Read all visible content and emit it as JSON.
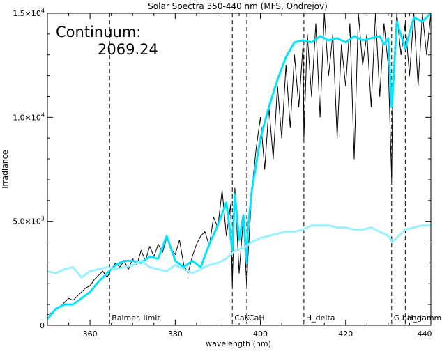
{
  "chart_data": {
    "type": "line",
    "title": "Solar Spectra 350-440 nm (MFS, Ondrejov)",
    "xlabel": "wavelength (nm)",
    "ylabel": "irradiance",
    "xlim": [
      350,
      440
    ],
    "ylim": [
      0,
      15000
    ],
    "x_ticks": [
      360,
      380,
      400,
      420,
      440
    ],
    "y_ticks": [
      {
        "value": 0,
        "base": "0",
        "exp": ""
      },
      {
        "value": 5000,
        "base": "5.0×10",
        "exp": "3"
      },
      {
        "value": 10000,
        "base": "1.0×10",
        "exp": "4"
      },
      {
        "value": 15000,
        "base": "1.5×10",
        "exp": "4"
      }
    ],
    "grid": false,
    "annotation": {
      "label": "Continuum:",
      "value": "2069.24"
    },
    "markers": [
      {
        "x": 364.6,
        "label": "Balmer. limit"
      },
      {
        "x": 393.4,
        "label": "CaK"
      },
      {
        "x": 396.8,
        "label": "CaH"
      },
      {
        "x": 410.2,
        "label": "H_delta"
      },
      {
        "x": 430.8,
        "label": "G band"
      },
      {
        "x": 434.0,
        "label": "H_gamma"
      }
    ],
    "series": [
      {
        "color": "#000000",
        "x": [
          350,
          351,
          352,
          353,
          354,
          355,
          356,
          357,
          358,
          359,
          360,
          361,
          362,
          363,
          364,
          365,
          366,
          367,
          368,
          369,
          370,
          371,
          372,
          373,
          374,
          375,
          376,
          377,
          378,
          379,
          380,
          381,
          382,
          383,
          384,
          385,
          386,
          387,
          388,
          389,
          390,
          391,
          392,
          393,
          393.4,
          394,
          395,
          396,
          396.8,
          397,
          398,
          399,
          400,
          401,
          402,
          403,
          404,
          405,
          406,
          407,
          408,
          409,
          410,
          410.2,
          411,
          412,
          413,
          414,
          415,
          416,
          417,
          418,
          419,
          420,
          421,
          422,
          423,
          424,
          425,
          426,
          427,
          428,
          429,
          430,
          430.8,
          431,
          432,
          433,
          434,
          435,
          436,
          437,
          438,
          439,
          440
        ],
        "y": [
          500,
          600,
          800,
          900,
          1100,
          1300,
          1200,
          1400,
          1600,
          1800,
          1900,
          2200,
          2400,
          2600,
          2300,
          2700,
          3000,
          2800,
          3100,
          2700,
          3200,
          2900,
          3600,
          3100,
          3800,
          3300,
          3900,
          3500,
          4200,
          3700,
          3400,
          4100,
          2900,
          2500,
          3300,
          3900,
          4300,
          4500,
          3800,
          5200,
          4700,
          6500,
          4300,
          5800,
          1900,
          6600,
          2500,
          5200,
          1800,
          3000,
          6500,
          8500,
          10000,
          7500,
          10500,
          8000,
          11500,
          9000,
          12500,
          9500,
          13000,
          10500,
          13500,
          9000,
          14000,
          11000,
          14500,
          10000,
          15000,
          12000,
          14000,
          9000,
          13500,
          11500,
          14500,
          8000,
          15000,
          12500,
          14000,
          10500,
          15000,
          11000,
          14500,
          12500,
          7000,
          10500,
          15000,
          13000,
          14500,
          12000,
          15000,
          11500,
          15000,
          13000,
          15000
        ]
      },
      {
        "color": "#00e5ff",
        "x": [
          350,
          352,
          354,
          356,
          358,
          360,
          362,
          364,
          366,
          368,
          370,
          372,
          374,
          376,
          378,
          380,
          382,
          384,
          386,
          388,
          390,
          392,
          393.4,
          394,
          395,
          396,
          396.8,
          397,
          398,
          400,
          402,
          404,
          406,
          408,
          410,
          412,
          414,
          416,
          418,
          420,
          422,
          424,
          426,
          428,
          429,
          430,
          430.8,
          431,
          432,
          434,
          436,
          438,
          440
        ],
        "y": [
          300,
          800,
          1000,
          1000,
          1300,
          1600,
          2100,
          2500,
          2900,
          3100,
          3100,
          3000,
          3300,
          3200,
          4300,
          3100,
          2800,
          3100,
          2800,
          3900,
          4800,
          5900,
          3600,
          6300,
          4100,
          5300,
          3000,
          4500,
          6500,
          9000,
          10500,
          11800,
          12900,
          13600,
          13700,
          13600,
          13900,
          13700,
          13800,
          13600,
          13900,
          13700,
          13800,
          13900,
          13500,
          13800,
          10500,
          11000,
          14600,
          13300,
          14800,
          14600,
          15000
        ]
      },
      {
        "color": "#99f0ff",
        "x": [
          350,
          352,
          354,
          356,
          358,
          360,
          362,
          364,
          366,
          368,
          370,
          372,
          374,
          376,
          378,
          380,
          382,
          384,
          386,
          388,
          390,
          392,
          394,
          396,
          398,
          400,
          402,
          404,
          406,
          408,
          410,
          412,
          414,
          416,
          418,
          420,
          422,
          424,
          426,
          428,
          430,
          431,
          432,
          434,
          436,
          438,
          440
        ],
        "y": [
          2600,
          2500,
          2700,
          2800,
          2300,
          2600,
          2700,
          2800,
          2700,
          2800,
          2900,
          3100,
          2800,
          2700,
          2600,
          2900,
          2700,
          2500,
          2700,
          2900,
          3000,
          3200,
          3600,
          3700,
          4000,
          4200,
          4300,
          4400,
          4500,
          4500,
          4600,
          4800,
          4800,
          4800,
          4700,
          4700,
          4600,
          4600,
          4700,
          4500,
          4300,
          4000,
          4200,
          4600,
          4700,
          4800,
          4800
        ]
      }
    ]
  }
}
